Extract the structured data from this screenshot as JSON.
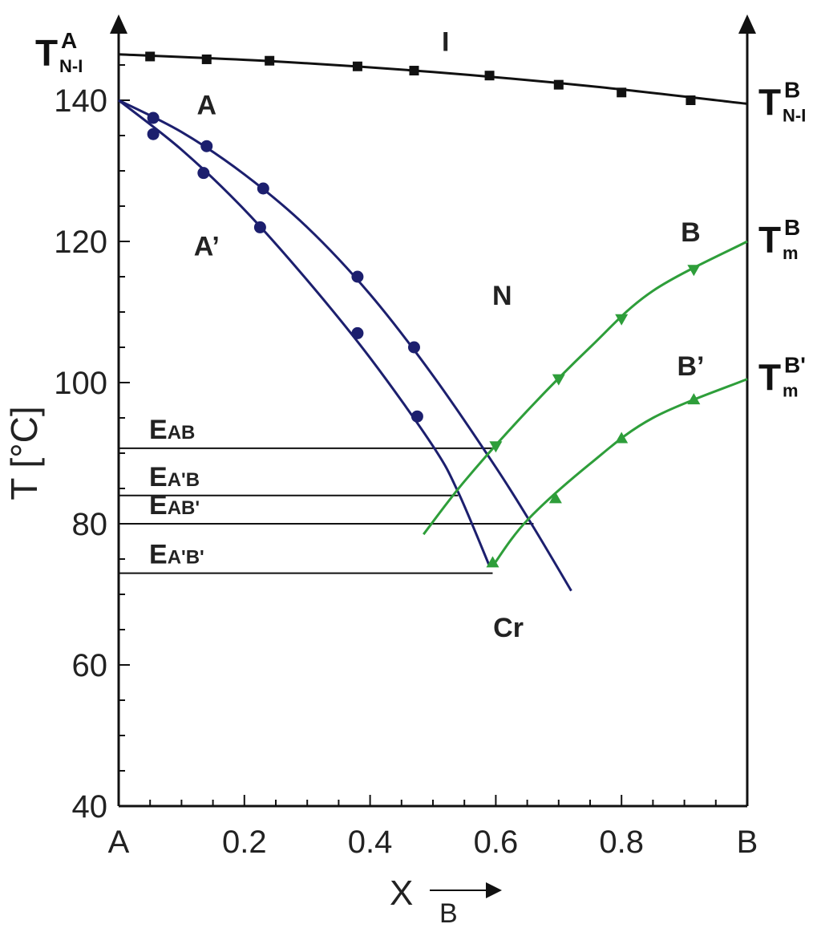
{
  "chart_data": {
    "type": "line",
    "ylabel": "T [°C]",
    "xlabel": "X",
    "xlabel_sub": "B",
    "xlim": [
      0,
      1
    ],
    "ylim": [
      40,
      150
    ],
    "x_ticks": [
      {
        "value": 0,
        "label": "A"
      },
      {
        "value": 0.2,
        "label": "0.2"
      },
      {
        "value": 0.4,
        "label": "0.4"
      },
      {
        "value": 0.6,
        "label": "0.6"
      },
      {
        "value": 0.8,
        "label": "0.8"
      },
      {
        "value": 1,
        "label": "B"
      }
    ],
    "y_ticks": [
      {
        "value": 40,
        "label": "40"
      },
      {
        "value": 60,
        "label": "60"
      },
      {
        "value": 80,
        "label": "80"
      },
      {
        "value": 100,
        "label": "100"
      },
      {
        "value": 120,
        "label": "120"
      },
      {
        "value": 140,
        "label": "140"
      }
    ],
    "grid": false,
    "series": [
      {
        "id": "NI",
        "color": "#111111",
        "marker": "square",
        "curve": [
          [
            0,
            146.5
          ],
          [
            0.25,
            145.5
          ],
          [
            0.5,
            144
          ],
          [
            0.75,
            142
          ],
          [
            1,
            139.5
          ]
        ],
        "points": [
          [
            0.05,
            146.2
          ],
          [
            0.14,
            145.8
          ],
          [
            0.24,
            145.6
          ],
          [
            0.38,
            144.8
          ],
          [
            0.47,
            144.2
          ],
          [
            0.59,
            143.5
          ],
          [
            0.7,
            142.2
          ],
          [
            0.8,
            141.1
          ],
          [
            0.91,
            140.0
          ]
        ]
      },
      {
        "id": "A",
        "color": "#1c1f6e",
        "marker": "circle",
        "curve": [
          [
            0,
            140
          ],
          [
            0.1,
            135.5
          ],
          [
            0.2,
            129.5
          ],
          [
            0.3,
            122
          ],
          [
            0.4,
            112.5
          ],
          [
            0.5,
            101
          ],
          [
            0.6,
            88
          ],
          [
            0.66,
            79.5
          ],
          [
            0.72,
            70.5
          ]
        ],
        "points": [
          [
            0.055,
            137.5
          ],
          [
            0.14,
            133.5
          ],
          [
            0.23,
            127.5
          ],
          [
            0.38,
            115
          ],
          [
            0.47,
            105
          ]
        ]
      },
      {
        "id": "A'",
        "color": "#1c1f6e",
        "marker": "circle",
        "curve": [
          [
            0,
            140
          ],
          [
            0.1,
            133
          ],
          [
            0.2,
            124.5
          ],
          [
            0.3,
            114.5
          ],
          [
            0.4,
            103.5
          ],
          [
            0.5,
            91
          ],
          [
            0.54,
            84.5
          ],
          [
            0.59,
            74
          ]
        ],
        "points": [
          [
            0.055,
            135.2
          ],
          [
            0.135,
            129.7
          ],
          [
            0.225,
            122
          ],
          [
            0.38,
            107
          ],
          [
            0.475,
            95.2
          ]
        ]
      },
      {
        "id": "B",
        "color": "#2e9e3a",
        "marker": "triangle-down",
        "curve": [
          [
            0.485,
            78.5
          ],
          [
            0.55,
            86
          ],
          [
            0.65,
            96
          ],
          [
            0.75,
            105
          ],
          [
            0.85,
            113
          ],
          [
            1,
            120
          ]
        ],
        "points": [
          [
            0.6,
            91
          ],
          [
            0.7,
            100.5
          ],
          [
            0.8,
            109
          ],
          [
            0.915,
            116
          ]
        ]
      },
      {
        "id": "B'",
        "color": "#2e9e3a",
        "marker": "triangle-up",
        "curve": [
          [
            0.595,
            74
          ],
          [
            0.65,
            80.5
          ],
          [
            0.75,
            88.5
          ],
          [
            0.85,
            95
          ],
          [
            1,
            100.5
          ]
        ],
        "points": [
          [
            0.595,
            74.5
          ],
          [
            0.695,
            83.6
          ],
          [
            0.8,
            92.1
          ],
          [
            0.915,
            97.6
          ]
        ]
      }
    ],
    "eutectic_lines": [
      {
        "main": "E",
        "sub": "AB",
        "y": 90.7,
        "x_end": 0.595
      },
      {
        "main": "E",
        "sub": "A'B",
        "y": 84,
        "x_end": 0.54
      },
      {
        "main": "E",
        "sub": "AB'",
        "y": 80,
        "x_end": 0.66
      },
      {
        "main": "E",
        "sub": "A'B'",
        "y": 73,
        "x_end": 0.595
      }
    ],
    "region_labels": [
      {
        "text": "I",
        "x": 0.52,
        "y": 147
      },
      {
        "text": "A",
        "x": 0.14,
        "y": 138
      },
      {
        "text": "A’",
        "x": 0.14,
        "y": 118
      },
      {
        "text": "N",
        "x": 0.61,
        "y": 111
      },
      {
        "text": "B",
        "x": 0.91,
        "y": 120
      },
      {
        "text": "B’",
        "x": 0.91,
        "y": 101
      },
      {
        "text": "Cr",
        "x": 0.62,
        "y": 64
      }
    ],
    "left_temperature_labels": [
      {
        "main": "T",
        "sup": "A",
        "sub": "N-I",
        "y": 146.5
      }
    ],
    "right_temperature_labels": [
      {
        "main": "T",
        "sup": "B",
        "sub": "N-I",
        "y": 139.5
      },
      {
        "main": "T",
        "sup": "B",
        "sub": "m",
        "y": 120
      },
      {
        "main": "T",
        "sup": "B'",
        "sub": "m",
        "y": 100.5
      }
    ]
  }
}
